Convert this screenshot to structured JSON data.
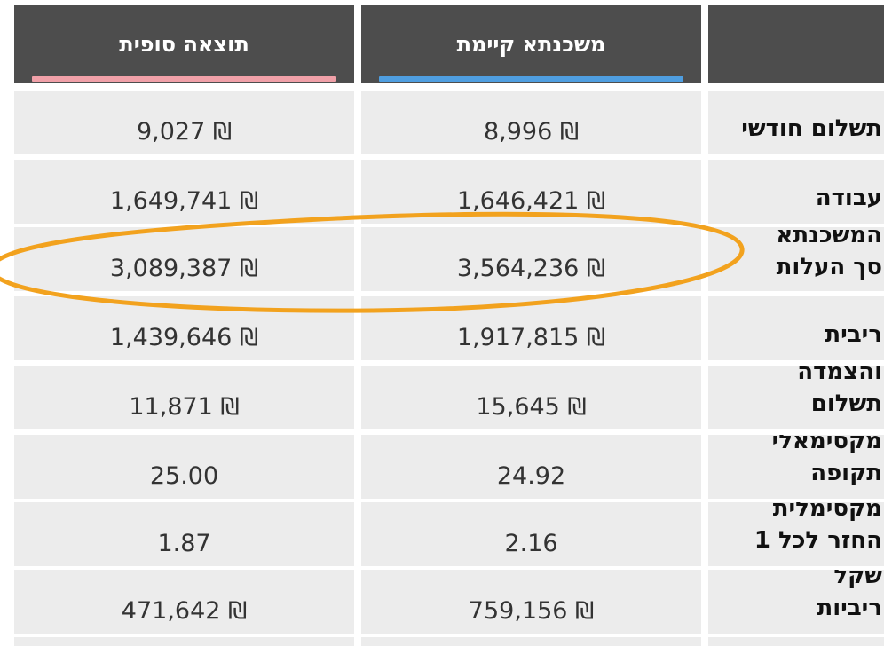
{
  "table": {
    "headers": {
      "col_final": "תוצאה סופית",
      "col_existing": "משכנתא קיימת"
    },
    "accent_colors": {
      "final_bar": "#f0a0a8",
      "existing_bar": "#4f9ee0",
      "highlight_ring": "#f2a21e"
    },
    "rows": [
      {
        "label_lines": [
          "תשלום חודשי"
        ],
        "final": "9,027 ₪",
        "existing": "8,996 ₪"
      },
      {
        "label_lines": [
          "עבודה"
        ],
        "final": "1,649,741 ₪",
        "existing": "1,646,421 ₪"
      },
      {
        "label_lines": [
          "המשכנתא",
          "סך העלות"
        ],
        "final": "3,089,387 ₪",
        "existing": "3,564,236 ₪"
      },
      {
        "label_lines": [
          "ריבית"
        ],
        "final": "1,439,646 ₪",
        "existing": "1,917,815 ₪"
      },
      {
        "label_lines": [
          "והצמדה",
          "תשלום"
        ],
        "final": "11,871 ₪",
        "existing": "15,645 ₪"
      },
      {
        "label_lines": [
          "מקסימאלי",
          "תקופה"
        ],
        "final": "25.00",
        "existing": "24.92"
      },
      {
        "label_lines": [
          "מקסימלית",
          "החזר לכל 1"
        ],
        "final": "1.87",
        "existing": "2.16"
      },
      {
        "label_lines": [
          "שקל",
          "ריביות"
        ],
        "final": "471,642 ₪",
        "existing": "759,156 ₪"
      }
    ]
  }
}
